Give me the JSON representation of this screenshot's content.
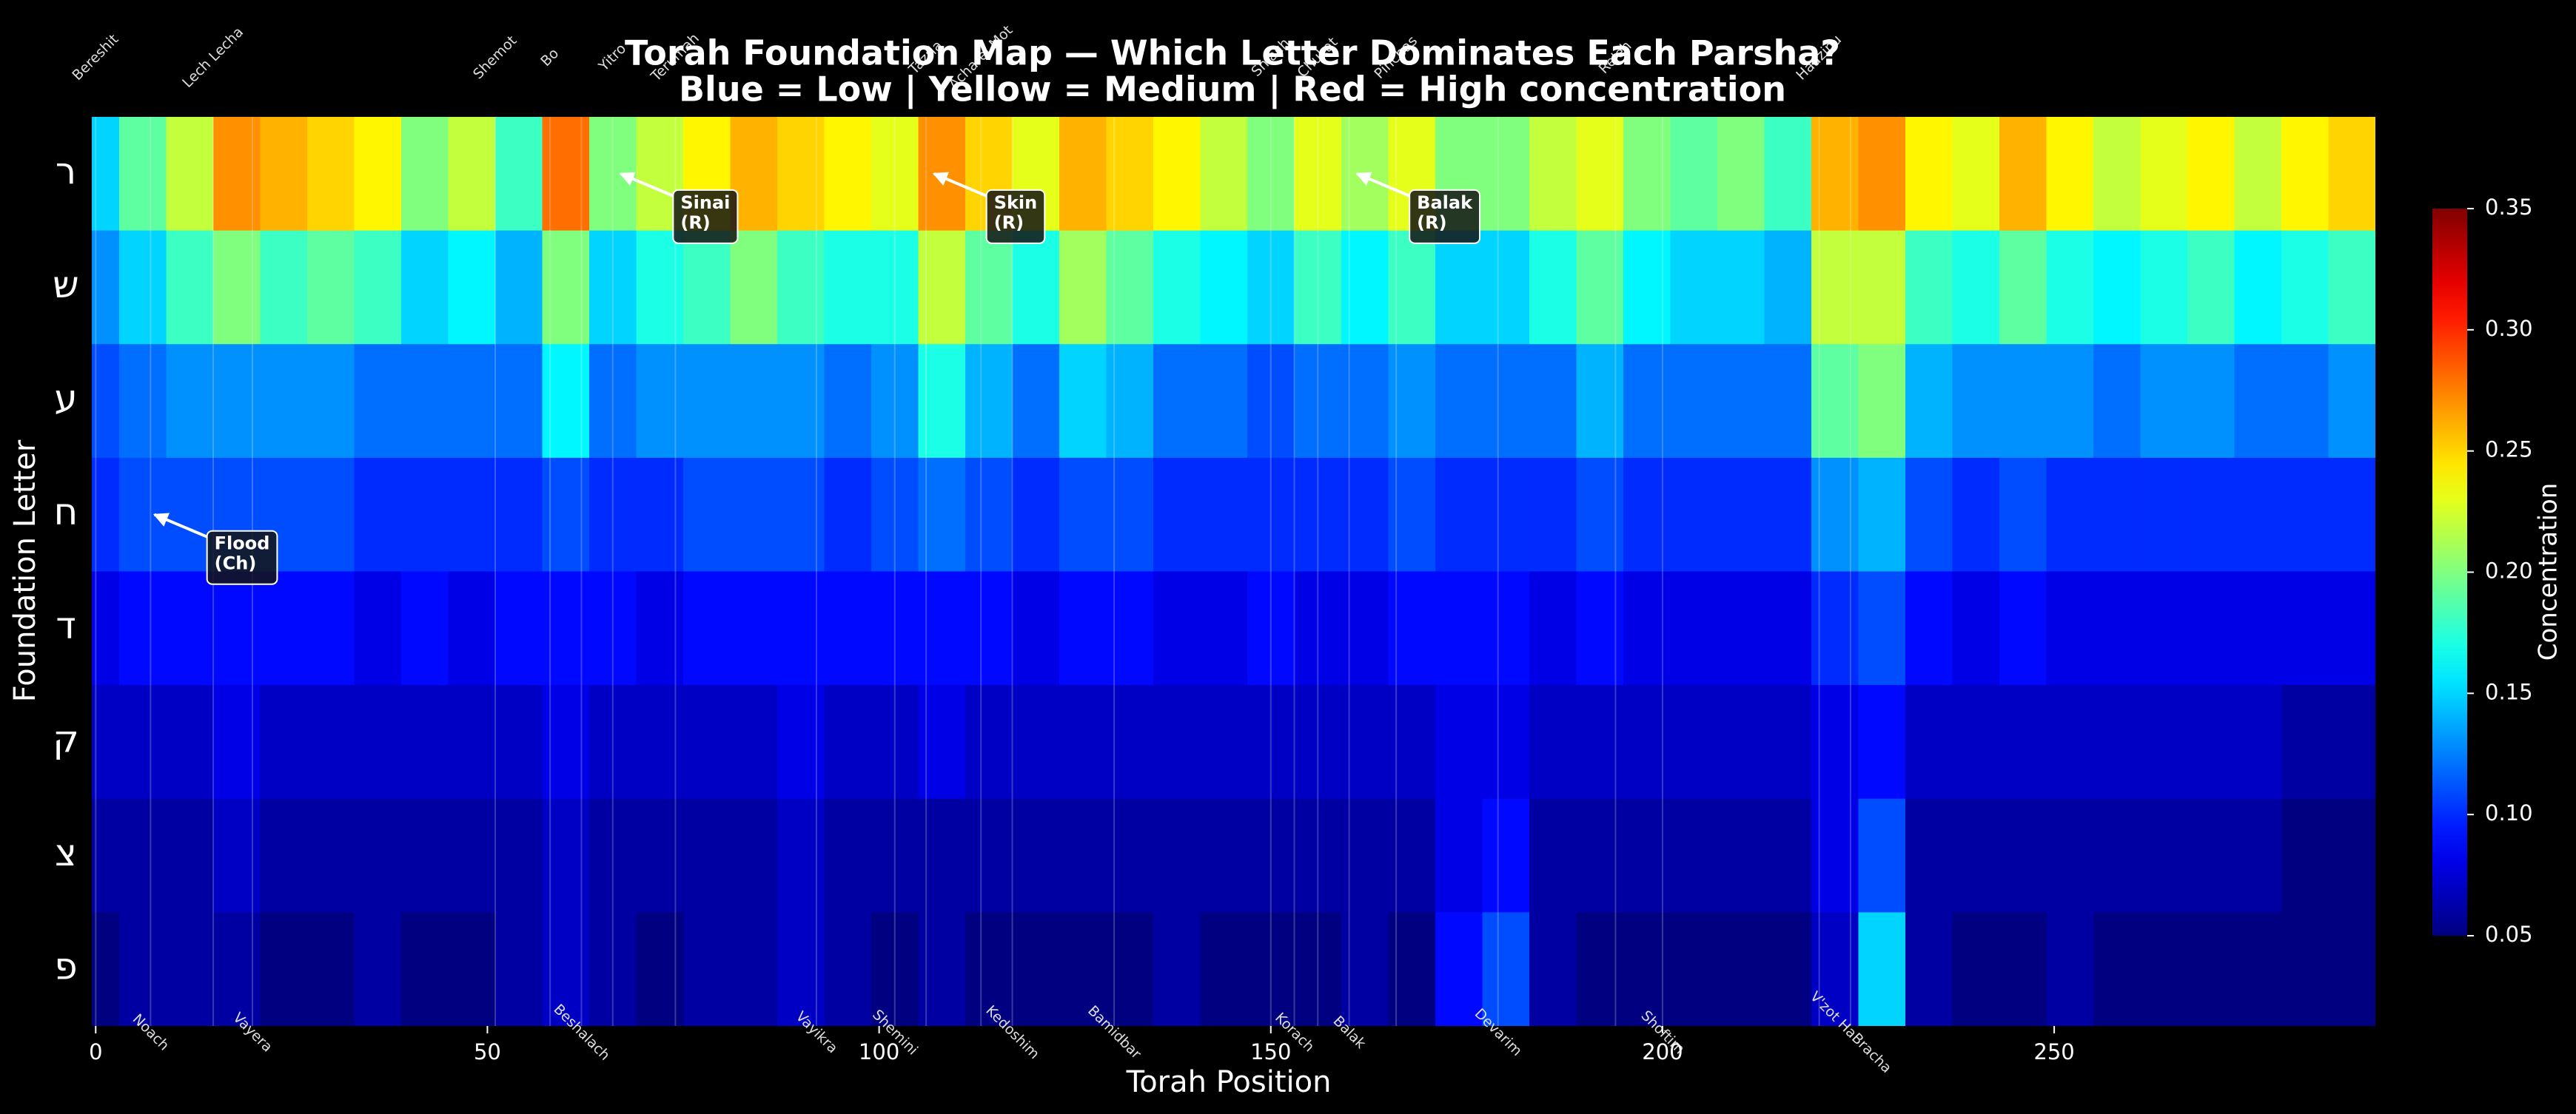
{
  "chart_data": {
    "type": "heatmap",
    "title": "Torah Foundation Map — Which Letter Dominates Each Parsha?",
    "subtitle": "Blue = Low | Yellow = Medium | Red = High concentration",
    "xlabel": "Torah Position",
    "ylabel": "Foundation Letter",
    "xlim": [
      -0.5,
      291
    ],
    "xticks": [
      0,
      50,
      100,
      150,
      200,
      250
    ],
    "colormap": "jet",
    "clim": [
      0.05,
      0.35
    ],
    "colorbar_label": "Concentration",
    "colorbar_ticks": [
      0.05,
      {
        "value": 0.1,
        "label": "0.10"
      },
      0.15,
      {
        "value": 0.2,
        "label": "0.20"
      },
      0.25,
      {
        "value": 0.3,
        "label": "0.30"
      },
      0.35
    ],
    "x": [
      0,
      6,
      12,
      18,
      24,
      30,
      36,
      42,
      48,
      54,
      60,
      66,
      72,
      78,
      84,
      90,
      96,
      102,
      108,
      114,
      120,
      126,
      132,
      138,
      144,
      150,
      156,
      162,
      168,
      174,
      180,
      186,
      192,
      198,
      204,
      210,
      216,
      222,
      228,
      234,
      240,
      246,
      252,
      258,
      264,
      270,
      276,
      282,
      288
    ],
    "series": [
      {
        "name": "ר",
        "values": [
          0.15,
          0.19,
          0.22,
          0.27,
          0.26,
          0.25,
          0.24,
          0.2,
          0.22,
          0.18,
          0.28,
          0.2,
          0.22,
          0.24,
          0.26,
          0.25,
          0.24,
          0.23,
          0.27,
          0.25,
          0.23,
          0.26,
          0.25,
          0.24,
          0.22,
          0.2,
          0.23,
          0.21,
          0.23,
          0.2,
          0.2,
          0.22,
          0.23,
          0.2,
          0.19,
          0.2,
          0.18,
          0.26,
          0.27,
          0.24,
          0.23,
          0.26,
          0.24,
          0.22,
          0.23,
          0.24,
          0.22,
          0.24,
          0.25
        ]
      },
      {
        "name": "ש",
        "values": [
          0.13,
          0.15,
          0.18,
          0.2,
          0.18,
          0.19,
          0.18,
          0.15,
          0.16,
          0.14,
          0.2,
          0.15,
          0.17,
          0.18,
          0.2,
          0.18,
          0.17,
          0.17,
          0.22,
          0.19,
          0.17,
          0.21,
          0.19,
          0.17,
          0.16,
          0.15,
          0.18,
          0.16,
          0.18,
          0.15,
          0.15,
          0.17,
          0.19,
          0.16,
          0.15,
          0.15,
          0.14,
          0.22,
          0.22,
          0.18,
          0.17,
          0.19,
          0.17,
          0.16,
          0.17,
          0.18,
          0.16,
          0.17,
          0.18
        ]
      },
      {
        "name": "ע",
        "values": [
          0.11,
          0.12,
          0.13,
          0.13,
          0.13,
          0.13,
          0.12,
          0.12,
          0.12,
          0.12,
          0.16,
          0.12,
          0.13,
          0.13,
          0.13,
          0.13,
          0.12,
          0.13,
          0.17,
          0.14,
          0.12,
          0.15,
          0.14,
          0.12,
          0.12,
          0.11,
          0.12,
          0.12,
          0.13,
          0.12,
          0.12,
          0.12,
          0.14,
          0.12,
          0.12,
          0.12,
          0.12,
          0.19,
          0.2,
          0.14,
          0.13,
          0.13,
          0.13,
          0.12,
          0.13,
          0.13,
          0.12,
          0.12,
          0.13
        ]
      },
      {
        "name": "ח",
        "values": [
          0.1,
          0.11,
          0.11,
          0.11,
          0.11,
          0.11,
          0.1,
          0.1,
          0.1,
          0.1,
          0.11,
          0.1,
          0.1,
          0.11,
          0.11,
          0.11,
          0.1,
          0.11,
          0.12,
          0.11,
          0.1,
          0.11,
          0.11,
          0.1,
          0.1,
          0.1,
          0.1,
          0.1,
          0.11,
          0.1,
          0.1,
          0.1,
          0.11,
          0.1,
          0.1,
          0.1,
          0.1,
          0.13,
          0.14,
          0.11,
          0.1,
          0.11,
          0.1,
          0.1,
          0.1,
          0.1,
          0.1,
          0.1,
          0.1
        ]
      },
      {
        "name": "ד",
        "values": [
          0.08,
          0.09,
          0.09,
          0.09,
          0.09,
          0.09,
          0.08,
          0.09,
          0.08,
          0.09,
          0.09,
          0.09,
          0.08,
          0.09,
          0.09,
          0.09,
          0.09,
          0.09,
          0.09,
          0.09,
          0.08,
          0.09,
          0.09,
          0.08,
          0.08,
          0.09,
          0.08,
          0.08,
          0.09,
          0.09,
          0.09,
          0.08,
          0.09,
          0.08,
          0.08,
          0.08,
          0.08,
          0.1,
          0.11,
          0.09,
          0.08,
          0.09,
          0.08,
          0.08,
          0.08,
          0.08,
          0.08,
          0.08,
          0.08
        ]
      },
      {
        "name": "ק",
        "values": [
          0.07,
          0.07,
          0.07,
          0.08,
          0.07,
          0.07,
          0.07,
          0.07,
          0.07,
          0.07,
          0.08,
          0.07,
          0.07,
          0.07,
          0.07,
          0.08,
          0.07,
          0.07,
          0.08,
          0.07,
          0.07,
          0.07,
          0.07,
          0.07,
          0.07,
          0.07,
          0.07,
          0.07,
          0.07,
          0.08,
          0.08,
          0.07,
          0.07,
          0.07,
          0.07,
          0.07,
          0.07,
          0.08,
          0.09,
          0.07,
          0.07,
          0.07,
          0.07,
          0.07,
          0.07,
          0.07,
          0.07,
          0.06,
          0.06
        ]
      },
      {
        "name": "צ",
        "values": [
          0.06,
          0.06,
          0.06,
          0.07,
          0.06,
          0.06,
          0.06,
          0.06,
          0.06,
          0.06,
          0.07,
          0.06,
          0.06,
          0.06,
          0.06,
          0.07,
          0.06,
          0.06,
          0.06,
          0.06,
          0.06,
          0.06,
          0.06,
          0.06,
          0.06,
          0.06,
          0.06,
          0.06,
          0.06,
          0.08,
          0.09,
          0.06,
          0.06,
          0.06,
          0.06,
          0.06,
          0.06,
          0.08,
          0.11,
          0.06,
          0.06,
          0.06,
          0.06,
          0.06,
          0.06,
          0.06,
          0.06,
          0.05,
          0.05
        ]
      },
      {
        "name": "פ",
        "values": [
          0.05,
          0.06,
          0.06,
          0.06,
          0.05,
          0.05,
          0.06,
          0.05,
          0.05,
          0.06,
          0.07,
          0.06,
          0.05,
          0.06,
          0.06,
          0.07,
          0.06,
          0.05,
          0.06,
          0.05,
          0.05,
          0.05,
          0.05,
          0.06,
          0.05,
          0.05,
          0.05,
          0.06,
          0.05,
          0.09,
          0.11,
          0.06,
          0.05,
          0.05,
          0.05,
          0.05,
          0.05,
          0.07,
          0.15,
          0.06,
          0.05,
          0.05,
          0.06,
          0.05,
          0.05,
          0.05,
          0.05,
          0.05,
          0.05
        ]
      }
    ],
    "parsha_top": [
      {
        "name": "Bereshit",
        "position": 0
      },
      {
        "name": "Lech Lecha",
        "position": 15
      },
      {
        "name": "Shemot",
        "position": 51
      },
      {
        "name": "Bo",
        "position": 58
      },
      {
        "name": "Yitro",
        "position": 66
      },
      {
        "name": "Terumah",
        "position": 74
      },
      {
        "name": "Tazria",
        "position": 106
      },
      {
        "name": "Acharei Mot",
        "position": 113
      },
      {
        "name": "Shlach",
        "position": 150
      },
      {
        "name": "Chukat",
        "position": 156
      },
      {
        "name": "Pinchas",
        "position": 166
      },
      {
        "name": "Re'eh",
        "position": 194
      },
      {
        "name": "Haazinu",
        "position": 220
      }
    ],
    "parsha_bottom": [
      {
        "name": "Noach",
        "position": 7
      },
      {
        "name": "Vayera",
        "position": 20
      },
      {
        "name": "Beshalach",
        "position": 62
      },
      {
        "name": "Vayikra",
        "position": 92
      },
      {
        "name": "Shemini",
        "position": 102
      },
      {
        "name": "Kedoshim",
        "position": 117
      },
      {
        "name": "Bamidbar",
        "position": 130
      },
      {
        "name": "Korach",
        "position": 153
      },
      {
        "name": "Balak",
        "position": 160
      },
      {
        "name": "Devarim",
        "position": 179
      },
      {
        "name": "Shoftim",
        "position": 200
      },
      {
        "name": "V'zot HaBracha",
        "position": 224
      }
    ],
    "annotations": [
      {
        "text": [
          "Flood",
          "(Ch)"
        ],
        "x": 7.5,
        "letter": "ח"
      },
      {
        "text": [
          "Sinai",
          "(R)"
        ],
        "x": 67,
        "letter": "ר"
      },
      {
        "text": [
          "Skin",
          "(R)"
        ],
        "x": 107,
        "letter": "ר"
      },
      {
        "text": [
          "Balak",
          "(R)"
        ],
        "x": 161,
        "letter": "ר"
      }
    ]
  }
}
